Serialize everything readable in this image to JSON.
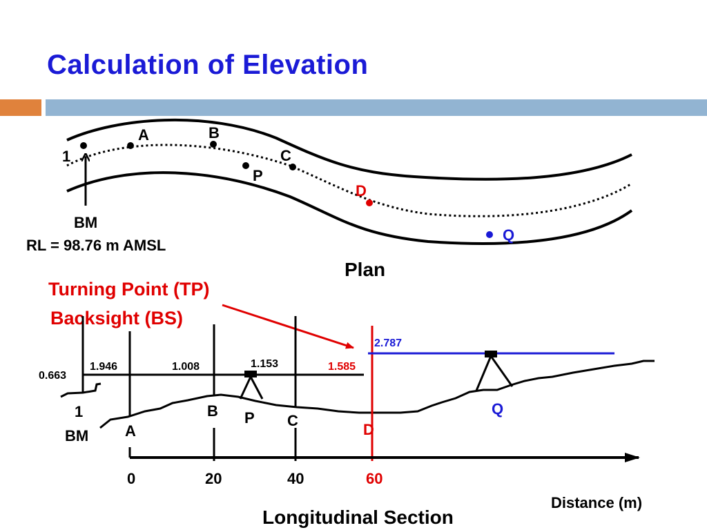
{
  "slide": {
    "title": "Calculation of Elevation"
  },
  "colors": {
    "title": "#1a1ad6",
    "accent_red": "#e00000",
    "accent_blue": "#1a1ad6",
    "bar_orange": "#e0823c",
    "bar_blue": "#92b4d2"
  },
  "plan": {
    "caption": "Plan",
    "points": {
      "p1": "1",
      "A": "A",
      "B": "B",
      "C": "C",
      "P": "P",
      "D": "D",
      "Q": "Q"
    },
    "bm_label": "BM",
    "rl_label": "RL = 98.76 m AMSL"
  },
  "section": {
    "caption": "Longitudinal Section",
    "annotation": {
      "line1": "Turning Point (TP)",
      "line2": "Backsight (BS)"
    },
    "readings": {
      "r1": "0.663",
      "rA": "1.946",
      "rB": "1.008",
      "rC": "1.153",
      "rD": "1.585",
      "rDQ": "2.787"
    },
    "stations": {
      "s1": "1",
      "bm": "BM",
      "A": "A",
      "B": "B",
      "P": "P",
      "C": "C",
      "D": "D",
      "Q": "Q"
    },
    "axis": {
      "ticks": [
        "0",
        "20",
        "40",
        "60"
      ],
      "label": "Distance (m)"
    }
  }
}
